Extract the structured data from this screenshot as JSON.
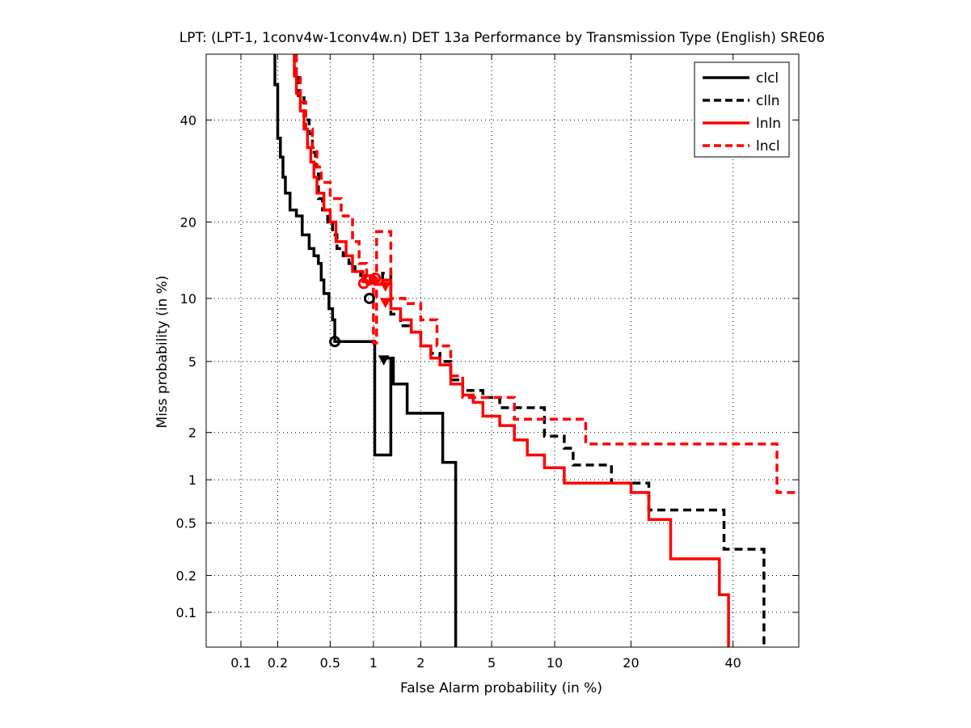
{
  "chart_data": {
    "type": "line",
    "title": "LPT: (LPT-1, 1conv4w-1conv4w.n) DET 13a Performance by Transmission Type (English) SRE06",
    "xlabel": "False Alarm probability (in %)",
    "ylabel": "Miss probability (in %)",
    "x_scale": "normal-deviate (probit)",
    "y_scale": "normal-deviate (probit)",
    "xlim": [
      0.05,
      55
    ],
    "ylim": [
      0.05,
      55
    ],
    "x_ticks": [
      "0.1",
      "0.2",
      "0.5",
      "1",
      "2",
      "5",
      "10",
      "20",
      "40"
    ],
    "y_ticks": [
      "0.1",
      "0.2",
      "0.5",
      "1",
      "2",
      "5",
      "10",
      "20",
      "40"
    ],
    "tick_values": [
      0.1,
      0.2,
      0.5,
      1,
      2,
      5,
      10,
      20,
      40
    ],
    "grid": true,
    "legend_position": "top-right",
    "series": [
      {
        "name": "clcl",
        "color": "#000000",
        "style": "solid",
        "points": [
          [
            0.19,
            55
          ],
          [
            0.19,
            48
          ],
          [
            0.2,
            48
          ],
          [
            0.2,
            36
          ],
          [
            0.21,
            36
          ],
          [
            0.21,
            32
          ],
          [
            0.22,
            32
          ],
          [
            0.22,
            28
          ],
          [
            0.23,
            28
          ],
          [
            0.23,
            25
          ],
          [
            0.25,
            25
          ],
          [
            0.25,
            22
          ],
          [
            0.28,
            22
          ],
          [
            0.28,
            21
          ],
          [
            0.31,
            21
          ],
          [
            0.31,
            18
          ],
          [
            0.35,
            18
          ],
          [
            0.35,
            16
          ],
          [
            0.38,
            16
          ],
          [
            0.38,
            15
          ],
          [
            0.41,
            15
          ],
          [
            0.41,
            14
          ],
          [
            0.43,
            14
          ],
          [
            0.43,
            12
          ],
          [
            0.45,
            12
          ],
          [
            0.45,
            10.5
          ],
          [
            0.49,
            10.5
          ],
          [
            0.49,
            9
          ],
          [
            0.52,
            9
          ],
          [
            0.52,
            8
          ],
          [
            0.54,
            8
          ],
          [
            0.54,
            6.3
          ],
          [
            1.02,
            6.3
          ],
          [
            1.02,
            1.45
          ],
          [
            1.3,
            1.45
          ],
          [
            1.3,
            5.2
          ],
          [
            1.15,
            5.2
          ],
          [
            1.15,
            5.2
          ],
          [
            1.35,
            5.2
          ],
          [
            1.35,
            3.8
          ],
          [
            1.65,
            3.8
          ],
          [
            1.65,
            2.6
          ],
          [
            2.7,
            2.6
          ],
          [
            2.7,
            1.3
          ],
          [
            3.2,
            1.3
          ],
          [
            3.2,
            0.05
          ]
        ],
        "markers": [
          {
            "shape": "circle",
            "x": 0.54,
            "y": 6.3
          },
          {
            "shape": "circle",
            "x": 0.94,
            "y": 10
          },
          {
            "shape": "triangle-down",
            "x": 1.17,
            "y": 5.1
          }
        ]
      },
      {
        "name": "clln",
        "color": "#000000",
        "style": "dashed",
        "points": [
          [
            0.27,
            55
          ],
          [
            0.27,
            50
          ],
          [
            0.29,
            50
          ],
          [
            0.29,
            45
          ],
          [
            0.32,
            45
          ],
          [
            0.32,
            40
          ],
          [
            0.35,
            40
          ],
          [
            0.35,
            37
          ],
          [
            0.37,
            37
          ],
          [
            0.37,
            33
          ],
          [
            0.39,
            33
          ],
          [
            0.39,
            30
          ],
          [
            0.41,
            30
          ],
          [
            0.41,
            24
          ],
          [
            0.44,
            24
          ],
          [
            0.44,
            22
          ],
          [
            0.48,
            22
          ],
          [
            0.48,
            20
          ],
          [
            0.52,
            20
          ],
          [
            0.52,
            18
          ],
          [
            0.56,
            18
          ],
          [
            0.56,
            16
          ],
          [
            0.62,
            16
          ],
          [
            0.62,
            15
          ],
          [
            0.68,
            15
          ],
          [
            0.68,
            14
          ],
          [
            0.75,
            14
          ],
          [
            0.75,
            13
          ],
          [
            0.82,
            13
          ],
          [
            0.82,
            12.5
          ],
          [
            1.0,
            12.5
          ],
          [
            1.0,
            11.5
          ],
          [
            1.15,
            11.5
          ],
          [
            1.15,
            12.8
          ],
          [
            1.3,
            12.8
          ],
          [
            1.3,
            8.5
          ],
          [
            1.5,
            8.5
          ],
          [
            1.5,
            7.5
          ],
          [
            1.75,
            7.5
          ],
          [
            1.75,
            7
          ],
          [
            2.0,
            7
          ],
          [
            2.0,
            6
          ],
          [
            2.3,
            6
          ],
          [
            2.3,
            5.5
          ],
          [
            2.6,
            5.5
          ],
          [
            2.6,
            5
          ],
          [
            3.0,
            5
          ],
          [
            3.0,
            4
          ],
          [
            3.5,
            4
          ],
          [
            3.5,
            3.5
          ],
          [
            4.5,
            3.5
          ],
          [
            4.5,
            3.2
          ],
          [
            5.5,
            3.2
          ],
          [
            5.5,
            2.8
          ],
          [
            9.0,
            2.8
          ],
          [
            9.0,
            1.9
          ],
          [
            11.0,
            1.9
          ],
          [
            11.0,
            1.6
          ],
          [
            12.0,
            1.6
          ],
          [
            12.0,
            1.25
          ],
          [
            17.0,
            1.25
          ],
          [
            17.0,
            0.95
          ],
          [
            23.0,
            0.95
          ],
          [
            23.0,
            0.62
          ],
          [
            38.0,
            0.62
          ],
          [
            38.0,
            0.32
          ],
          [
            47.0,
            0.32
          ],
          [
            47.0,
            0.05
          ]
        ],
        "markers": []
      },
      {
        "name": "lnln",
        "color": "#ff0000",
        "style": "solid",
        "points": [
          [
            0.27,
            55
          ],
          [
            0.27,
            50
          ],
          [
            0.28,
            50
          ],
          [
            0.28,
            46
          ],
          [
            0.3,
            46
          ],
          [
            0.3,
            42
          ],
          [
            0.32,
            42
          ],
          [
            0.32,
            38
          ],
          [
            0.34,
            38
          ],
          [
            0.34,
            34
          ],
          [
            0.36,
            34
          ],
          [
            0.36,
            31
          ],
          [
            0.38,
            31
          ],
          [
            0.38,
            28
          ],
          [
            0.4,
            28
          ],
          [
            0.4,
            25
          ],
          [
            0.45,
            25
          ],
          [
            0.45,
            22
          ],
          [
            0.5,
            22
          ],
          [
            0.5,
            20
          ],
          [
            0.55,
            20
          ],
          [
            0.55,
            17
          ],
          [
            0.65,
            17
          ],
          [
            0.65,
            15
          ],
          [
            0.72,
            15
          ],
          [
            0.72,
            13
          ],
          [
            0.85,
            13
          ],
          [
            0.85,
            11.8
          ],
          [
            0.95,
            11.8
          ],
          [
            0.95,
            12.3
          ],
          [
            1.02,
            12.3
          ],
          [
            1.02,
            11.5
          ],
          [
            1.15,
            11.5
          ],
          [
            1.15,
            12
          ],
          [
            1.3,
            12
          ],
          [
            1.3,
            9
          ],
          [
            1.5,
            9
          ],
          [
            1.5,
            8
          ],
          [
            1.75,
            8
          ],
          [
            1.75,
            7
          ],
          [
            2.0,
            7
          ],
          [
            2.0,
            6
          ],
          [
            2.3,
            6
          ],
          [
            2.3,
            5.2
          ],
          [
            2.6,
            5.2
          ],
          [
            2.6,
            4.8
          ],
          [
            3.0,
            4.8
          ],
          [
            3.0,
            3.8
          ],
          [
            3.5,
            3.8
          ],
          [
            3.5,
            3.3
          ],
          [
            4.0,
            3.3
          ],
          [
            4.0,
            3.0
          ],
          [
            4.5,
            3.0
          ],
          [
            4.5,
            2.5
          ],
          [
            5.5,
            2.5
          ],
          [
            5.5,
            2.2
          ],
          [
            6.5,
            2.2
          ],
          [
            6.5,
            1.8
          ],
          [
            7.5,
            1.8
          ],
          [
            7.5,
            1.45
          ],
          [
            9.0,
            1.45
          ],
          [
            9.0,
            1.2
          ],
          [
            11.0,
            1.2
          ],
          [
            11.0,
            0.95
          ],
          [
            20.0,
            0.95
          ],
          [
            20.0,
            0.82
          ],
          [
            23.0,
            0.82
          ],
          [
            23.0,
            0.53
          ],
          [
            27.0,
            0.53
          ],
          [
            27.0,
            0.27
          ],
          [
            37.0,
            0.27
          ],
          [
            37.0,
            0.14
          ],
          [
            39.0,
            0.14
          ],
          [
            39.0,
            0.05
          ]
        ],
        "markers": [
          {
            "shape": "circle",
            "x": 0.86,
            "y": 11.6
          },
          {
            "shape": "circle",
            "x": 1.03,
            "y": 12.2
          },
          {
            "shape": "triangle-down",
            "x": 1.2,
            "y": 11.3
          }
        ]
      },
      {
        "name": "lncl",
        "color": "#ff0000",
        "style": "dashed",
        "points": [
          [
            0.28,
            55
          ],
          [
            0.28,
            50
          ],
          [
            0.3,
            50
          ],
          [
            0.3,
            44
          ],
          [
            0.33,
            44
          ],
          [
            0.33,
            38
          ],
          [
            0.37,
            38
          ],
          [
            0.37,
            34
          ],
          [
            0.4,
            34
          ],
          [
            0.4,
            30
          ],
          [
            0.43,
            30
          ],
          [
            0.43,
            27
          ],
          [
            0.5,
            27
          ],
          [
            0.5,
            24
          ],
          [
            0.6,
            24
          ],
          [
            0.6,
            21
          ],
          [
            0.72,
            21
          ],
          [
            0.72,
            17
          ],
          [
            0.8,
            17
          ],
          [
            0.8,
            14
          ],
          [
            0.9,
            14
          ],
          [
            0.9,
            12.5
          ],
          [
            1.0,
            12.5
          ],
          [
            1.0,
            6.2
          ],
          [
            1.05,
            6.2
          ],
          [
            1.05,
            18.5
          ],
          [
            1.3,
            18.5
          ],
          [
            1.3,
            10
          ],
          [
            1.6,
            10
          ],
          [
            1.6,
            9.5
          ],
          [
            2.0,
            9.5
          ],
          [
            2.0,
            8
          ],
          [
            2.5,
            8
          ],
          [
            2.5,
            6
          ],
          [
            3.0,
            6
          ],
          [
            3.0,
            4.2
          ],
          [
            3.5,
            4.2
          ],
          [
            3.5,
            3.2
          ],
          [
            6.5,
            3.2
          ],
          [
            6.5,
            2.4
          ],
          [
            13.5,
            2.4
          ],
          [
            13.5,
            1.7
          ],
          [
            50.0,
            1.7
          ],
          [
            50.0,
            0.82
          ],
          [
            55.0,
            0.82
          ]
        ],
        "markers": [
          {
            "shape": "circle",
            "x": 0.94,
            "y": 12
          },
          {
            "shape": "triangle-down",
            "x": 1.2,
            "y": 9.6
          }
        ]
      }
    ]
  }
}
